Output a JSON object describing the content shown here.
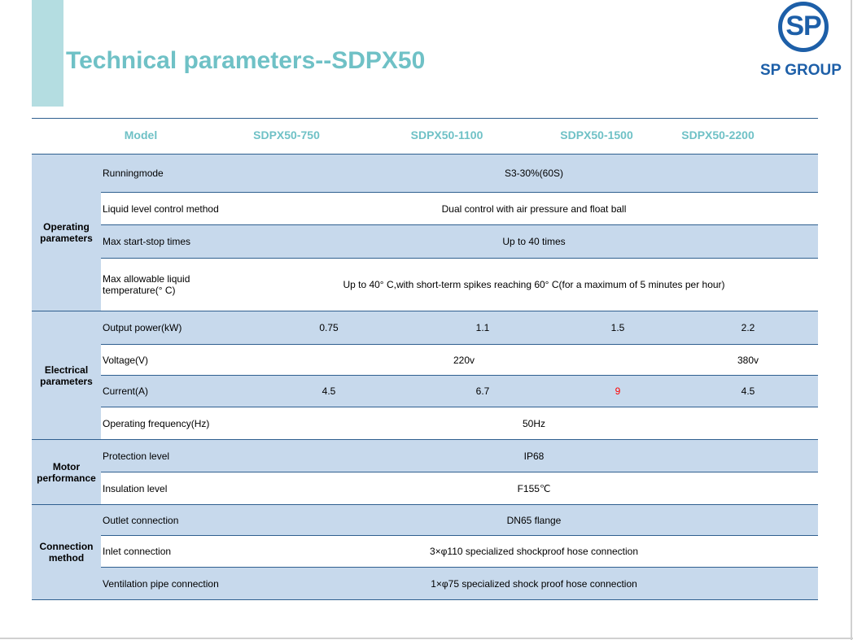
{
  "title": "Technical parameters--SDPX50",
  "logo": {
    "mark": "SP",
    "text": "SP GROUP"
  },
  "colors": {
    "title": "#6fc1c6",
    "brand": "#1d5fa8",
    "row_fill": "#c7d9ec",
    "highlight": "#ff0000"
  },
  "header": {
    "model_label": "Model",
    "models": [
      "SDPX50-750",
      "SDPX50-1100",
      "SDPX50-1500",
      "SDPX50-2200"
    ]
  },
  "groups": [
    {
      "label": "Operating\nparameters",
      "rows": [
        {
          "param": "Runningmode",
          "value": "S3-30%(60S)"
        },
        {
          "param": "Liquid level control method",
          "value": "Dual control with air pressure and float ball"
        },
        {
          "param": "Max start-stop times",
          "value": "Up to 40 times"
        },
        {
          "param": "Max allowable liquid temperature(° C)",
          "value": "Up to 40° C,with short-term spikes reaching 60° C(for a maximum of 5 minutes per hour)"
        }
      ]
    },
    {
      "label": "Electrical\nparameters",
      "rows": [
        {
          "param": "Output power(kW)",
          "values": [
            "0.75",
            "1.1",
            "1.5",
            "2.2"
          ]
        },
        {
          "param": "Voltage(V)",
          "v1": "220v",
          "v2": "380v"
        },
        {
          "param": "Current(A)",
          "values": [
            "4.5",
            "6.7",
            "9",
            "4.5"
          ]
        },
        {
          "param": "Operating frequency(Hz)",
          "value": "50Hz"
        }
      ]
    },
    {
      "label": "Motor\nperformance",
      "rows": [
        {
          "param": "Protection level",
          "value": "IP68"
        },
        {
          "param": "Insulation level",
          "value": "F155℃"
        }
      ]
    },
    {
      "label": "Connection\nmethod",
      "rows": [
        {
          "param": "Outlet connection",
          "value": "DN65 flange"
        },
        {
          "param": "Inlet connection",
          "value": "3×φ110 specialized shockproof hose connection"
        },
        {
          "param": "Ventilation pipe connection",
          "value": "1×φ75 specialized shock proof hose connection"
        }
      ]
    }
  ]
}
